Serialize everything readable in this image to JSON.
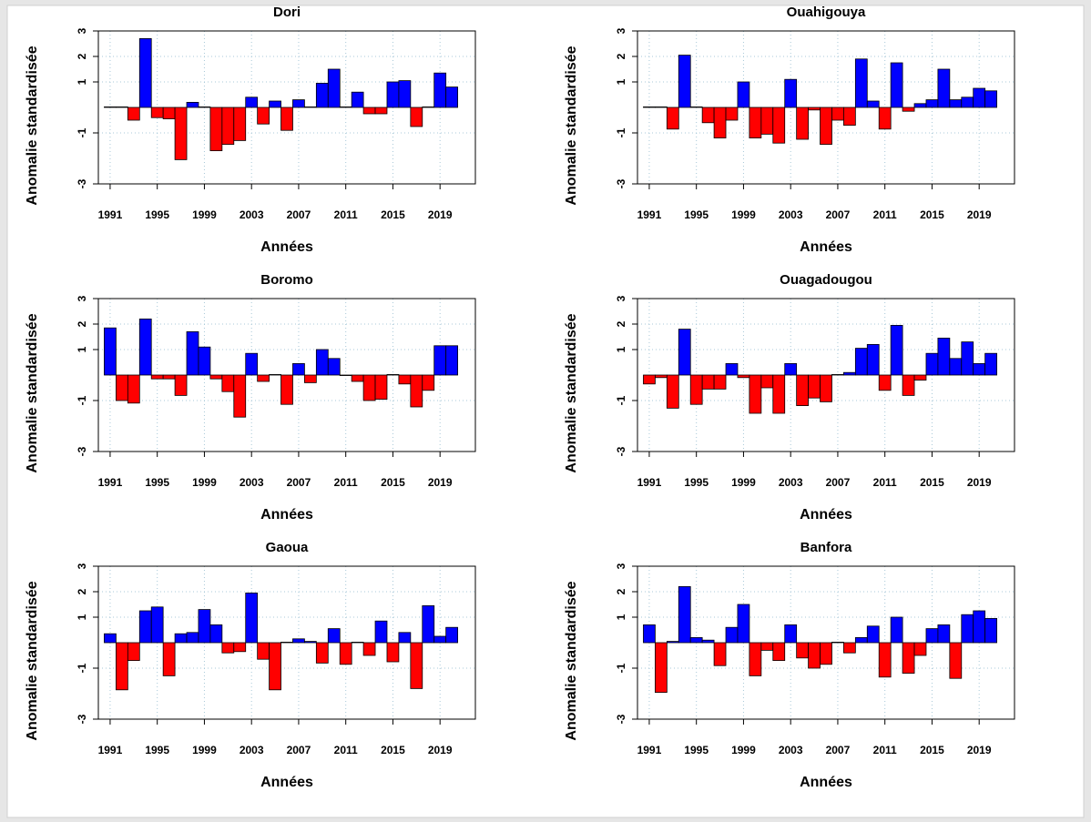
{
  "chart_data": [
    {
      "type": "bar",
      "title": "Dori",
      "xlabel": "Années",
      "ylabel": "Anomalie standardisée",
      "x": [
        1991,
        1992,
        1993,
        1994,
        1995,
        1996,
        1997,
        1998,
        1999,
        2000,
        2001,
        2002,
        2003,
        2004,
        2005,
        2006,
        2007,
        2008,
        2009,
        2010,
        2011,
        2012,
        2013,
        2014,
        2015,
        2016,
        2017,
        2018,
        2019,
        2020
      ],
      "values": [
        0.02,
        0.02,
        -0.5,
        2.7,
        -0.4,
        -0.45,
        -2.05,
        0.2,
        0.02,
        -1.7,
        -1.45,
        -1.3,
        0.4,
        -0.65,
        0.25,
        -0.9,
        0.3,
        0.02,
        0.95,
        1.5,
        0.02,
        0.6,
        -0.25,
        -0.25,
        1.0,
        1.05,
        -0.75,
        0.02,
        1.35,
        0.8
      ],
      "xlim": [
        1990,
        2022
      ],
      "ylim": [
        -3,
        3
      ],
      "xticks": [
        1991,
        1995,
        1999,
        2003,
        2007,
        2011,
        2015,
        2019
      ],
      "yticks": [
        -3,
        -1,
        1,
        2,
        3
      ],
      "grid": true,
      "colors": {
        "positive": "#0000ff",
        "negative": "#ff0000"
      }
    },
    {
      "type": "bar",
      "title": "Ouahigouya",
      "xlabel": "Années",
      "ylabel": "Anomalie standardisée",
      "x": [
        1991,
        1992,
        1993,
        1994,
        1995,
        1996,
        1997,
        1998,
        1999,
        2000,
        2001,
        2002,
        2003,
        2004,
        2005,
        2006,
        2007,
        2008,
        2009,
        2010,
        2011,
        2012,
        2013,
        2014,
        2015,
        2016,
        2017,
        2018,
        2019,
        2020
      ],
      "values": [
        0.02,
        0.02,
        -0.85,
        2.05,
        0.02,
        -0.6,
        -1.2,
        -0.5,
        1.0,
        -1.2,
        -1.05,
        -1.4,
        1.1,
        -1.25,
        -0.1,
        -1.45,
        -0.5,
        -0.7,
        1.9,
        0.25,
        -0.85,
        1.75,
        -0.15,
        0.15,
        0.3,
        1.5,
        0.3,
        0.4,
        0.75,
        0.65
      ],
      "xlim": [
        1990,
        2022
      ],
      "ylim": [
        -3,
        3
      ],
      "xticks": [
        1991,
        1995,
        1999,
        2003,
        2007,
        2011,
        2015,
        2019
      ],
      "yticks": [
        -3,
        -1,
        1,
        2,
        3
      ],
      "grid": true,
      "colors": {
        "positive": "#0000ff",
        "negative": "#ff0000"
      }
    },
    {
      "type": "bar",
      "title": "Boromo",
      "xlabel": "Années",
      "ylabel": "Anomalie standardisée",
      "x": [
        1991,
        1992,
        1993,
        1994,
        1995,
        1996,
        1997,
        1998,
        1999,
        2000,
        2001,
        2002,
        2003,
        2004,
        2005,
        2006,
        2007,
        2008,
        2009,
        2010,
        2011,
        2012,
        2013,
        2014,
        2015,
        2016,
        2017,
        2018,
        2019,
        2020
      ],
      "values": [
        1.85,
        -1.0,
        -1.1,
        2.2,
        -0.15,
        -0.15,
        -0.8,
        1.7,
        1.1,
        -0.15,
        -0.65,
        -1.65,
        0.85,
        -0.25,
        0.02,
        -1.15,
        0.45,
        -0.3,
        1.0,
        0.65,
        -0.02,
        -0.25,
        -1.0,
        -0.95,
        0.02,
        -0.35,
        -1.25,
        -0.6,
        1.15,
        1.15
      ],
      "xlim": [
        1990,
        2022
      ],
      "ylim": [
        -3,
        3
      ],
      "xticks": [
        1991,
        1995,
        1999,
        2003,
        2007,
        2011,
        2015,
        2019
      ],
      "yticks": [
        -3,
        -1,
        1,
        2,
        3
      ],
      "grid": true,
      "colors": {
        "positive": "#0000ff",
        "negative": "#ff0000"
      }
    },
    {
      "type": "bar",
      "title": "Ouagadougou",
      "xlabel": "Années",
      "ylabel": "Anomalie standardisée",
      "x": [
        1991,
        1992,
        1993,
        1994,
        1995,
        1996,
        1997,
        1998,
        1999,
        2000,
        2001,
        2002,
        2003,
        2004,
        2005,
        2006,
        2007,
        2008,
        2009,
        2010,
        2011,
        2012,
        2013,
        2014,
        2015,
        2016,
        2017,
        2018,
        2019,
        2020
      ],
      "values": [
        -0.35,
        -0.1,
        -1.3,
        1.8,
        -1.15,
        -0.55,
        -0.55,
        0.45,
        -0.1,
        -1.5,
        -0.5,
        -1.5,
        0.45,
        -1.2,
        -0.9,
        -1.05,
        0.02,
        0.1,
        1.05,
        1.2,
        -0.6,
        1.95,
        -0.8,
        -0.2,
        0.85,
        1.45,
        0.65,
        1.3,
        0.45,
        0.85
      ],
      "xlim": [
        1990,
        2022
      ],
      "ylim": [
        -3,
        3
      ],
      "xticks": [
        1991,
        1995,
        1999,
        2003,
        2007,
        2011,
        2015,
        2019
      ],
      "yticks": [
        -3,
        -1,
        1,
        2,
        3
      ],
      "grid": true,
      "colors": {
        "positive": "#0000ff",
        "negative": "#ff0000"
      }
    },
    {
      "type": "bar",
      "title": "Gaoua",
      "xlabel": "Années",
      "ylabel": "Anomalie standardisée",
      "x": [
        1991,
        1992,
        1993,
        1994,
        1995,
        1996,
        1997,
        1998,
        1999,
        2000,
        2001,
        2002,
        2003,
        2004,
        2005,
        2006,
        2007,
        2008,
        2009,
        2010,
        2011,
        2012,
        2013,
        2014,
        2015,
        2016,
        2017,
        2018,
        2019,
        2020
      ],
      "values": [
        0.35,
        -1.85,
        -0.7,
        1.25,
        1.4,
        -1.3,
        0.35,
        0.4,
        1.3,
        0.7,
        -0.4,
        -0.35,
        1.95,
        -0.65,
        -1.85,
        0.02,
        0.15,
        0.05,
        -0.8,
        0.55,
        -0.85,
        0.02,
        -0.5,
        0.85,
        -0.75,
        0.4,
        -1.8,
        1.45,
        0.25,
        0.6
      ],
      "xlim": [
        1990,
        2022
      ],
      "ylim": [
        -3,
        3
      ],
      "xticks": [
        1991,
        1995,
        1999,
        2003,
        2007,
        2011,
        2015,
        2019
      ],
      "yticks": [
        -3,
        -1,
        1,
        2,
        3
      ],
      "grid": true,
      "colors": {
        "positive": "#0000ff",
        "negative": "#ff0000"
      }
    },
    {
      "type": "bar",
      "title": "Banfora",
      "xlabel": "Années",
      "ylabel": "Anomalie standardisée",
      "x": [
        1991,
        1992,
        1993,
        1994,
        1995,
        1996,
        1997,
        1998,
        1999,
        2000,
        2001,
        2002,
        2003,
        2004,
        2005,
        2006,
        2007,
        2008,
        2009,
        2010,
        2011,
        2012,
        2013,
        2014,
        2015,
        2016,
        2017,
        2018,
        2019,
        2020
      ],
      "values": [
        0.7,
        -1.95,
        0.05,
        2.2,
        0.2,
        0.1,
        -0.9,
        0.6,
        1.5,
        -1.3,
        -0.3,
        -0.7,
        0.7,
        -0.6,
        -1.0,
        -0.85,
        0.02,
        -0.4,
        0.2,
        0.65,
        -1.35,
        1.0,
        -1.2,
        -0.5,
        0.55,
        0.7,
        -1.4,
        1.1,
        1.25,
        0.95
      ],
      "xlim": [
        1990,
        2022
      ],
      "ylim": [
        -3,
        3
      ],
      "xticks": [
        1991,
        1995,
        1999,
        2003,
        2007,
        2011,
        2015,
        2019
      ],
      "yticks": [
        -3,
        -1,
        1,
        2,
        3
      ],
      "grid": true,
      "colors": {
        "positive": "#0000ff",
        "negative": "#ff0000"
      }
    }
  ]
}
